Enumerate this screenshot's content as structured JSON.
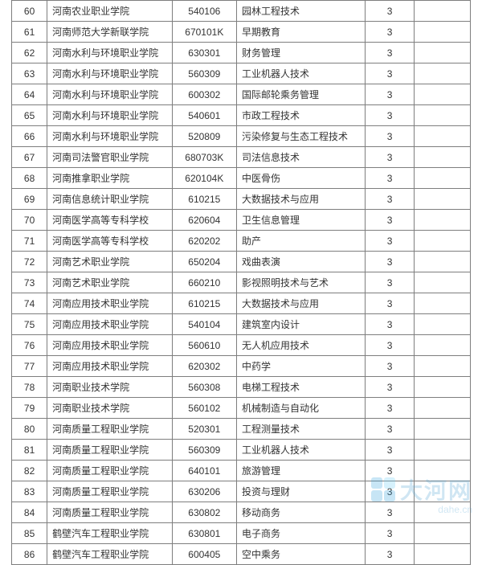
{
  "table": {
    "border_color": "#7e7e7e",
    "text_color": "#333333",
    "font_size": 12,
    "rows": [
      {
        "idx": "60",
        "school": "河南农业职业学院",
        "code": "540106",
        "major": "园林工程技术",
        "years": "3",
        "extra": ""
      },
      {
        "idx": "61",
        "school": "河南师范大学新联学院",
        "code": "670101K",
        "major": "早期教育",
        "years": "3",
        "extra": ""
      },
      {
        "idx": "62",
        "school": "河南水利与环境职业学院",
        "code": "630301",
        "major": "财务管理",
        "years": "3",
        "extra": ""
      },
      {
        "idx": "63",
        "school": "河南水利与环境职业学院",
        "code": "560309",
        "major": "工业机器人技术",
        "years": "3",
        "extra": ""
      },
      {
        "idx": "64",
        "school": "河南水利与环境职业学院",
        "code": "600302",
        "major": "国际邮轮乘务管理",
        "years": "3",
        "extra": ""
      },
      {
        "idx": "65",
        "school": "河南水利与环境职业学院",
        "code": "540601",
        "major": "市政工程技术",
        "years": "3",
        "extra": ""
      },
      {
        "idx": "66",
        "school": "河南水利与环境职业学院",
        "code": "520809",
        "major": "污染修复与生态工程技术",
        "years": "3",
        "extra": ""
      },
      {
        "idx": "67",
        "school": "河南司法警官职业学院",
        "code": "680703K",
        "major": "司法信息技术",
        "years": "3",
        "extra": ""
      },
      {
        "idx": "68",
        "school": "河南推拿职业学院",
        "code": "620104K",
        "major": "中医骨伤",
        "years": "3",
        "extra": ""
      },
      {
        "idx": "69",
        "school": "河南信息统计职业学院",
        "code": "610215",
        "major": "大数据技术与应用",
        "years": "3",
        "extra": ""
      },
      {
        "idx": "70",
        "school": "河南医学高等专科学校",
        "code": "620604",
        "major": "卫生信息管理",
        "years": "3",
        "extra": ""
      },
      {
        "idx": "71",
        "school": "河南医学高等专科学校",
        "code": "620202",
        "major": "助产",
        "years": "3",
        "extra": ""
      },
      {
        "idx": "72",
        "school": "河南艺术职业学院",
        "code": "650204",
        "major": "戏曲表演",
        "years": "3",
        "extra": ""
      },
      {
        "idx": "73",
        "school": "河南艺术职业学院",
        "code": "660210",
        "major": "影视照明技术与艺术",
        "years": "3",
        "extra": ""
      },
      {
        "idx": "74",
        "school": "河南应用技术职业学院",
        "code": "610215",
        "major": "大数据技术与应用",
        "years": "3",
        "extra": ""
      },
      {
        "idx": "75",
        "school": "河南应用技术职业学院",
        "code": "540104",
        "major": "建筑室内设计",
        "years": "3",
        "extra": ""
      },
      {
        "idx": "76",
        "school": "河南应用技术职业学院",
        "code": "560610",
        "major": "无人机应用技术",
        "years": "3",
        "extra": ""
      },
      {
        "idx": "77",
        "school": "河南应用技术职业学院",
        "code": "620302",
        "major": "中药学",
        "years": "3",
        "extra": ""
      },
      {
        "idx": "78",
        "school": "河南职业技术学院",
        "code": "560308",
        "major": "电梯工程技术",
        "years": "3",
        "extra": ""
      },
      {
        "idx": "79",
        "school": "河南职业技术学院",
        "code": "560102",
        "major": "机械制造与自动化",
        "years": "3",
        "extra": ""
      },
      {
        "idx": "80",
        "school": "河南质量工程职业学院",
        "code": "520301",
        "major": "工程测量技术",
        "years": "3",
        "extra": ""
      },
      {
        "idx": "81",
        "school": "河南质量工程职业学院",
        "code": "560309",
        "major": "工业机器人技术",
        "years": "3",
        "extra": ""
      },
      {
        "idx": "82",
        "school": "河南质量工程职业学院",
        "code": "640101",
        "major": "旅游管理",
        "years": "3",
        "extra": ""
      },
      {
        "idx": "83",
        "school": "河南质量工程职业学院",
        "code": "630206",
        "major": "投资与理财",
        "years": "3",
        "extra": ""
      },
      {
        "idx": "84",
        "school": "河南质量工程职业学院",
        "code": "630802",
        "major": "移动商务",
        "years": "3",
        "extra": ""
      },
      {
        "idx": "85",
        "school": "鹤壁汽车工程职业学院",
        "code": "630801",
        "major": "电子商务",
        "years": "3",
        "extra": ""
      },
      {
        "idx": "86",
        "school": "鹤壁汽车工程职业学院",
        "code": "600405",
        "major": "空中乘务",
        "years": "3",
        "extra": ""
      }
    ]
  },
  "watermark": {
    "brand_text": "大河网",
    "sub_text": "dahe.cn",
    "logo_colors": [
      "#3aa6dd",
      "#6ecff5",
      "#3aa6dd",
      "#3aa6dd"
    ],
    "text_color": "#5aa9d6"
  }
}
